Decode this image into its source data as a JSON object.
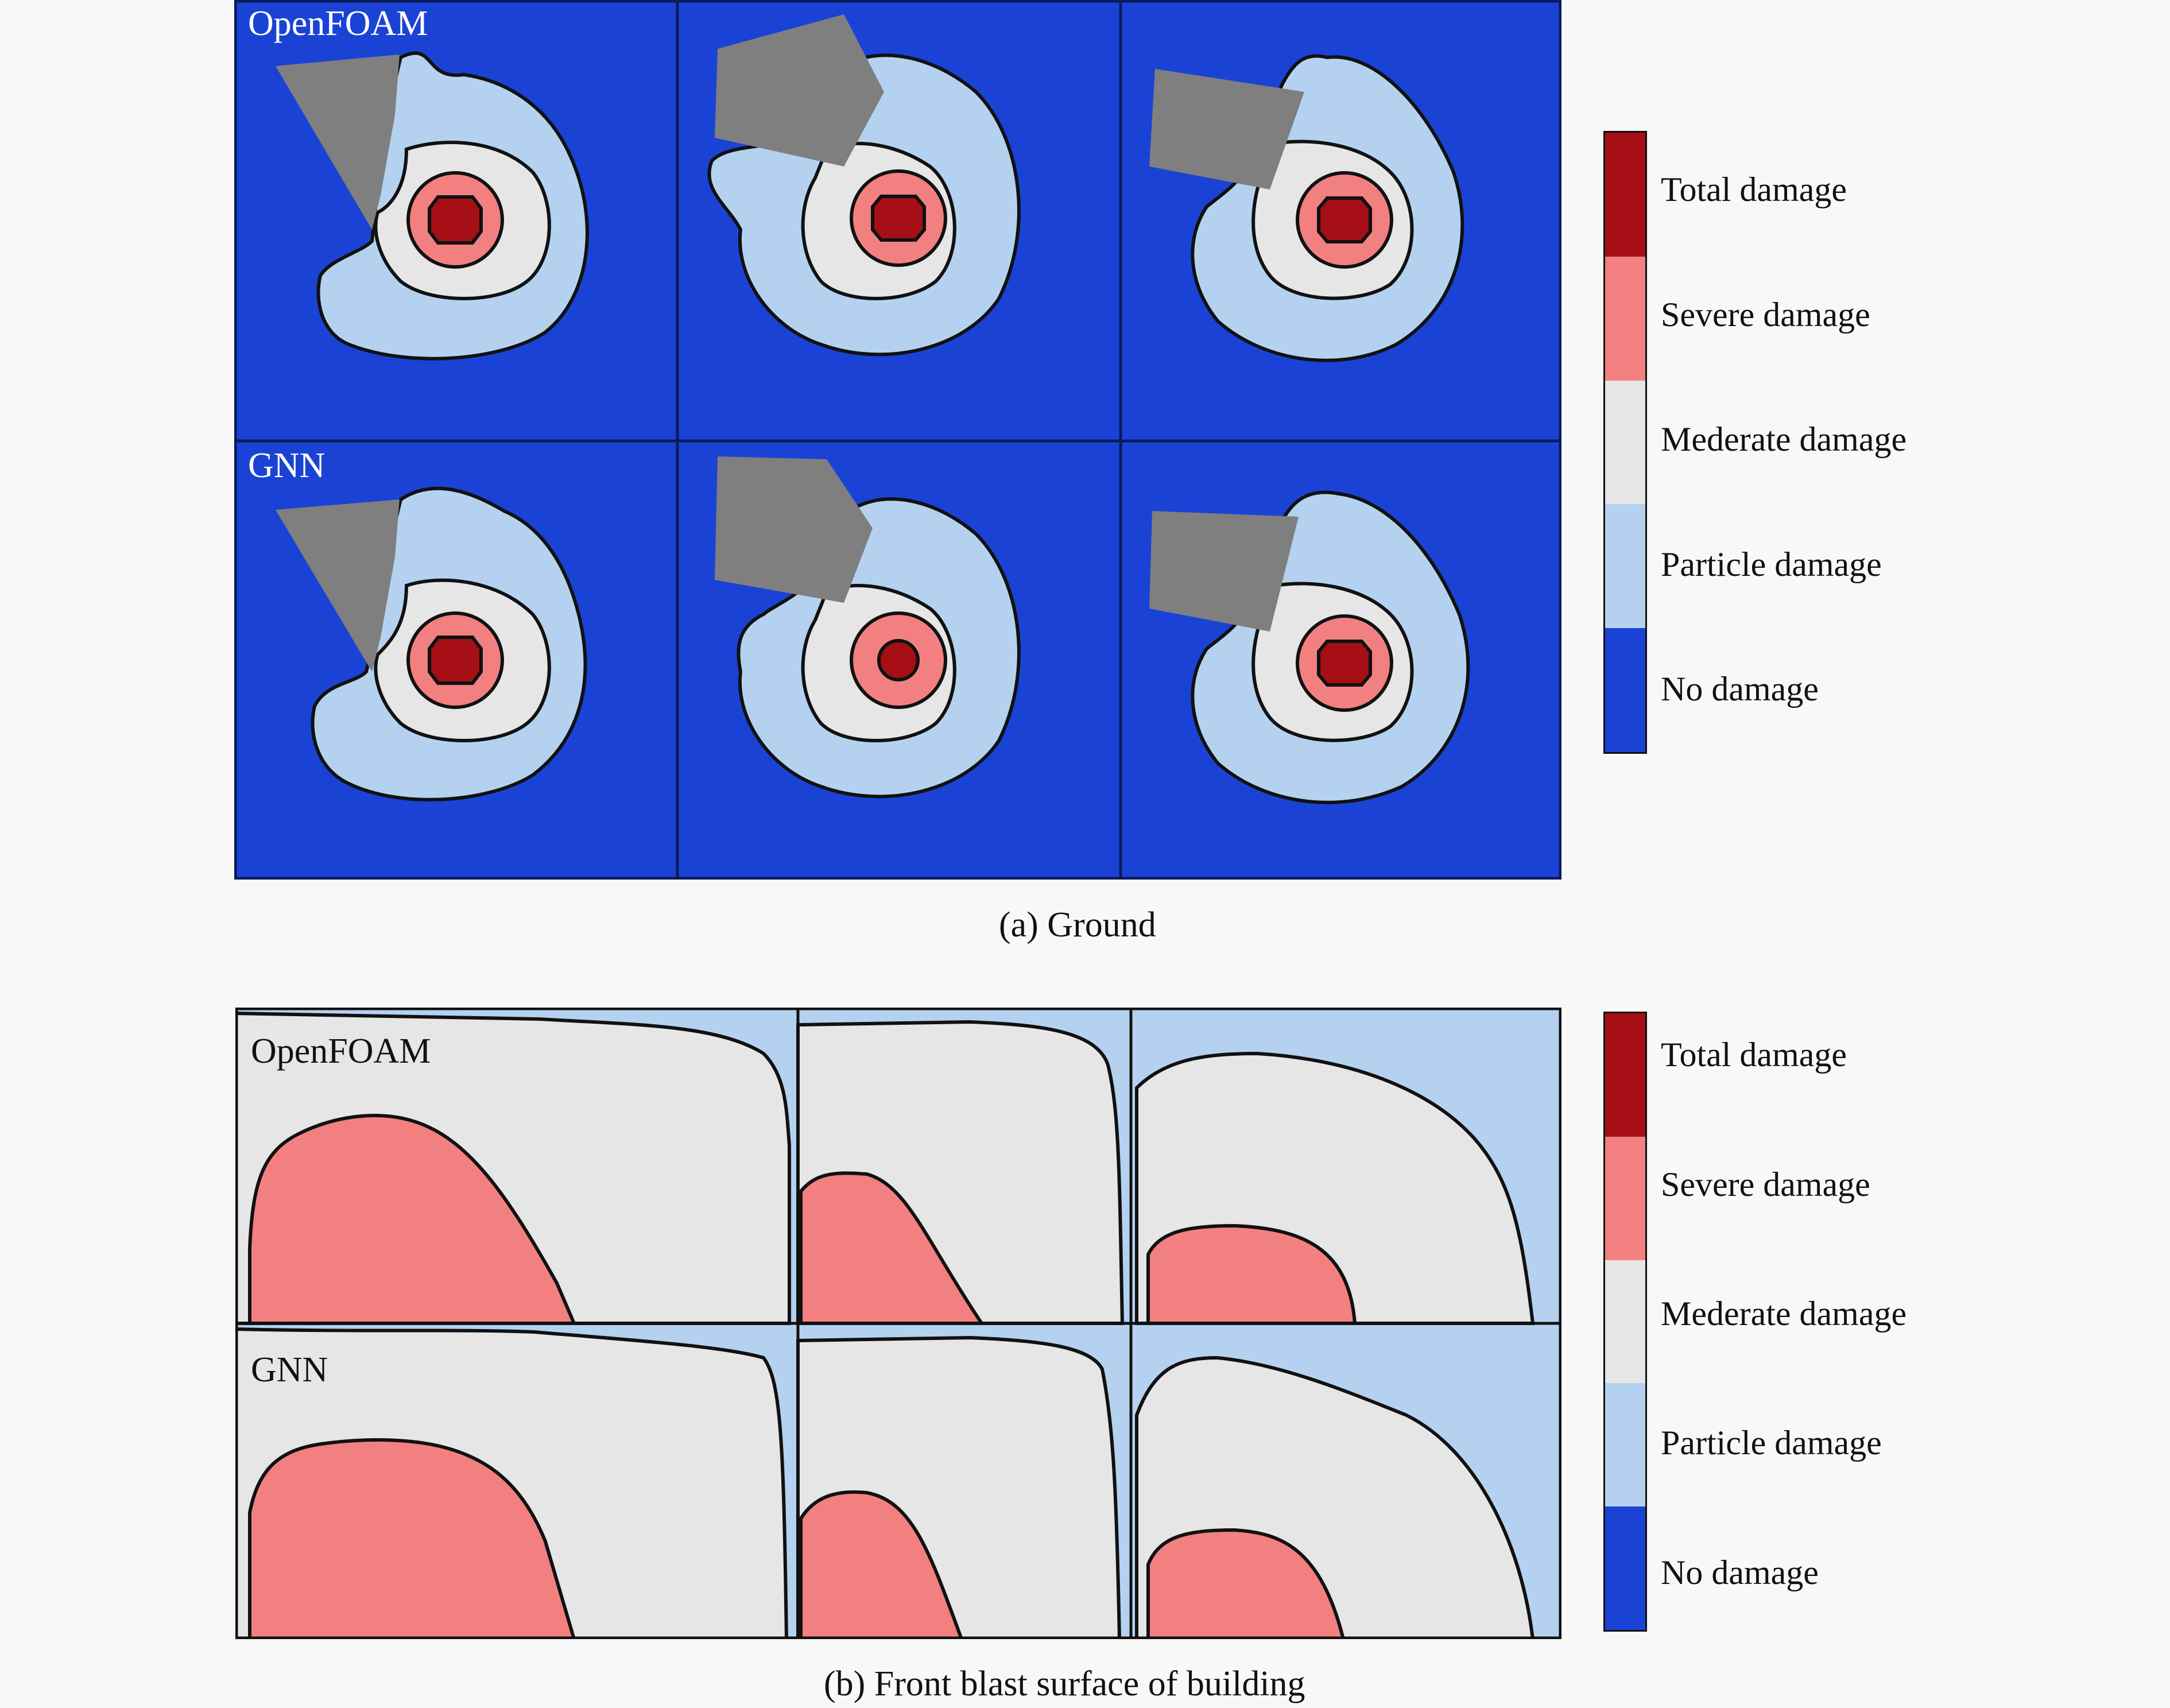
{
  "colors": {
    "total": "#a50f15",
    "severe": "#f28080",
    "moderate": "#e6e6e6",
    "particle": "#b4d2f0",
    "none": "#1a43d6",
    "building": "#7f7f7f"
  },
  "legend": {
    "items": [
      {
        "label": "Total damage",
        "color": "#a50f15"
      },
      {
        "label": "Severe damage",
        "color": "#f28080"
      },
      {
        "label": "Mederate damage",
        "color": "#e6e6e6"
      },
      {
        "label": "Particle damage",
        "color": "#b4d2f0"
      },
      {
        "label": "No damage",
        "color": "#1a43d6"
      }
    ]
  },
  "panel_a": {
    "row_labels": [
      "OpenFOAM",
      "GNN"
    ],
    "caption": "(a) Ground"
  },
  "panel_b": {
    "row_labels": [
      "OpenFOAM",
      "GNN"
    ],
    "caption": "(b) Front blast surface of building"
  }
}
